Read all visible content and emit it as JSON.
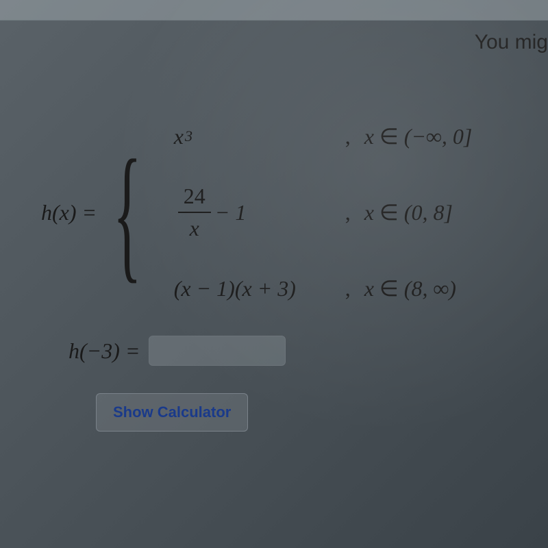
{
  "sidebar": {
    "hint_text": "You mig"
  },
  "function": {
    "name": "h",
    "variable": "x",
    "label_prefix": "h(x) = ",
    "cases": [
      {
        "expression_var": "x",
        "expression_power": "3",
        "condition_var": "x",
        "condition_set": "(−∞, 0]"
      },
      {
        "fraction_num": "24",
        "fraction_den": "x",
        "expression_suffix": " − 1",
        "condition_var": "x",
        "condition_set": "(0, 8]"
      },
      {
        "expression_full": "(x − 1)(x + 3)",
        "condition_var": "x",
        "condition_set": "(8, ∞)"
      }
    ]
  },
  "question": {
    "prompt_prefix": "h(−3) = ",
    "input_value": ""
  },
  "buttons": {
    "calculator_label": "Show Calculator"
  },
  "symbols": {
    "element_of": "∈",
    "comma": ","
  },
  "style": {
    "background_gradient": [
      "#5a6268",
      "#4a5258",
      "#3a4248"
    ],
    "text_color": "#1a1a1a",
    "button_text_color": "#1a3a8a",
    "border_color": "#7a828a",
    "font_family_math": "Times New Roman",
    "font_family_ui": "-apple-system",
    "font_size_math": 32,
    "font_size_button": 22,
    "input_width": 200,
    "input_height": 44,
    "border_radius": 6
  }
}
